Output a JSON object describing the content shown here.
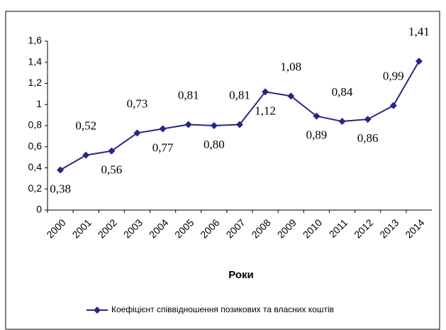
{
  "chart_data": {
    "type": "line",
    "categories": [
      "2000",
      "2001",
      "2002",
      "2003",
      "2004",
      "2005",
      "2006",
      "2007",
      "2008",
      "2009",
      "2010",
      "2011",
      "2012",
      "2013",
      "2014"
    ],
    "x_label": "Роки",
    "series": [
      {
        "name": "Коефіцієнт співвідношення позикових та власних коштів",
        "color": "#262686",
        "values": [
          0.38,
          0.52,
          0.56,
          0.73,
          0.77,
          0.81,
          0.8,
          0.81,
          1.12,
          1.08,
          0.89,
          0.84,
          0.86,
          0.99,
          1.41
        ],
        "value_labels": [
          "0,38",
          "0,52",
          "0,56",
          "0,73",
          "0,77",
          "0,81",
          "0,80",
          "0,81",
          "1,12",
          "1,08",
          "0,89",
          "0,84",
          "0,86",
          "0,99",
          "1,41"
        ]
      }
    ],
    "ylim": [
      0,
      1.6
    ],
    "yticks": [
      0,
      {
        "value": 0.2,
        "label": "0,2"
      },
      {
        "value": 0.4,
        "label": "0,4"
      },
      {
        "value": 0.6,
        "label": "0,6"
      },
      {
        "value": 0.8,
        "label": "0,8"
      },
      1,
      {
        "value": 1.2,
        "label": "1,2"
      },
      {
        "value": 1.4,
        "label": "1,4"
      },
      {
        "value": 1.6,
        "label": "1,6"
      }
    ],
    "grid": false,
    "legend": "bottom"
  }
}
